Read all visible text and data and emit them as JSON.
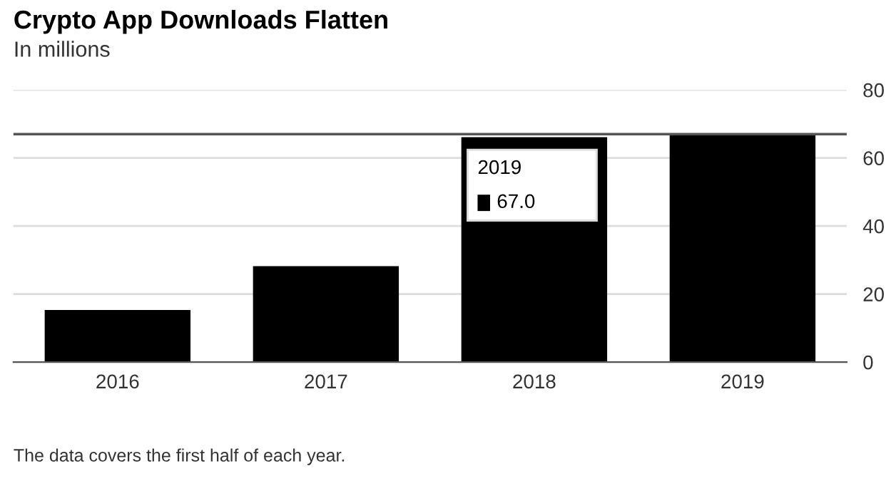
{
  "chart_data": {
    "type": "bar",
    "title": "Crypto App Downloads Flatten",
    "subtitle": "In millions",
    "categories": [
      "2016",
      "2017",
      "2018",
      "2019"
    ],
    "values": [
      15.3,
      28.2,
      66.1,
      67.0
    ],
    "color": "#000000",
    "ylim": [
      0,
      80
    ],
    "yticks": [
      0,
      20,
      40,
      60,
      80
    ],
    "grid": "y",
    "ref_lines": [
      {
        "axis": "y",
        "value": 67.0,
        "color": "#555555"
      }
    ],
    "annotations": [
      "2019",
      "67.0",
      "The data covers the first half of each year."
    ]
  }
}
